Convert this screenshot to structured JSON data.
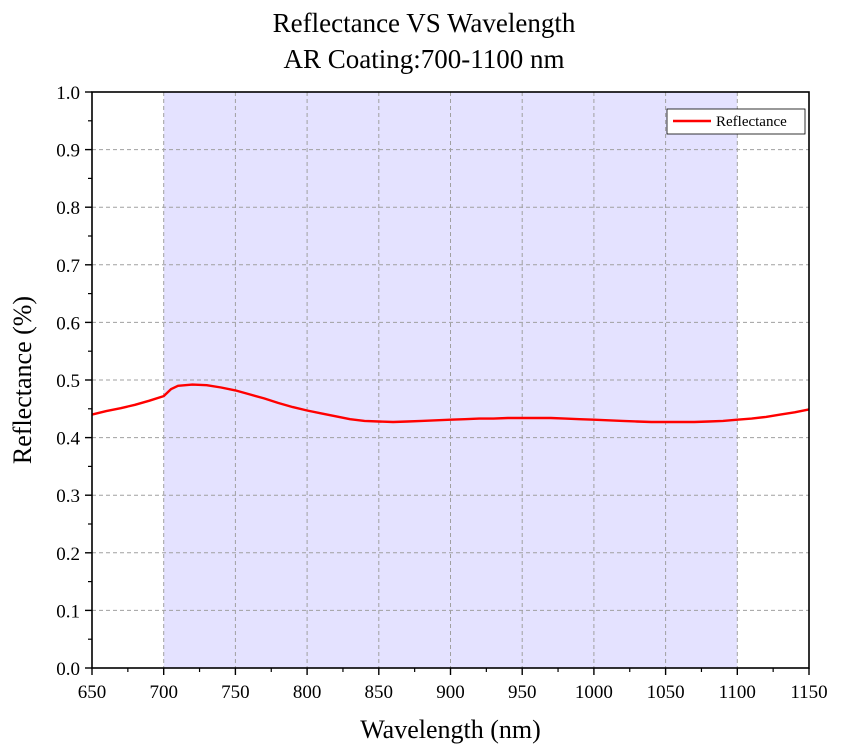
{
  "chart_data": {
    "type": "line",
    "title": "Reflectance VS Wavelength",
    "subtitle": "AR Coating:700-1100 nm",
    "xlabel": "Wavelength (nm)",
    "ylabel": "Reflectance (%)",
    "xlim": [
      650,
      1150
    ],
    "ylim": [
      0.0,
      1.0
    ],
    "xticks": [
      "650",
      "700",
      "750",
      "800",
      "850",
      "900",
      "950",
      "1000",
      "1050",
      "1100",
      "1150"
    ],
    "yticks": [
      "0.0",
      "0.1",
      "0.2",
      "0.3",
      "0.4",
      "0.5",
      "0.6",
      "0.7",
      "0.8",
      "0.9",
      "1.0"
    ],
    "grid": true,
    "legend_position": "top-right",
    "highlight_band": [
      700,
      1100
    ],
    "colors": {
      "series": "#ff0000",
      "band": "#e4e2ff",
      "grid": "#a0a0a0"
    },
    "series": [
      {
        "name": "Reflectance",
        "x": [
          650,
          660,
          670,
          680,
          690,
          700,
          705,
          710,
          720,
          730,
          740,
          750,
          760,
          770,
          780,
          790,
          800,
          810,
          820,
          830,
          840,
          850,
          860,
          870,
          880,
          890,
          900,
          910,
          920,
          930,
          940,
          950,
          960,
          970,
          980,
          990,
          1000,
          1010,
          1020,
          1030,
          1040,
          1050,
          1060,
          1070,
          1080,
          1090,
          1100,
          1110,
          1120,
          1130,
          1140,
          1150
        ],
        "y": [
          0.44,
          0.446,
          0.451,
          0.457,
          0.464,
          0.472,
          0.484,
          0.49,
          0.492,
          0.491,
          0.487,
          0.482,
          0.475,
          0.468,
          0.46,
          0.453,
          0.447,
          0.442,
          0.437,
          0.432,
          0.429,
          0.428,
          0.427,
          0.428,
          0.429,
          0.43,
          0.431,
          0.432,
          0.433,
          0.433,
          0.434,
          0.434,
          0.434,
          0.434,
          0.433,
          0.432,
          0.431,
          0.43,
          0.429,
          0.428,
          0.427,
          0.427,
          0.427,
          0.427,
          0.428,
          0.429,
          0.431,
          0.433,
          0.436,
          0.44,
          0.444,
          0.449
        ]
      }
    ]
  }
}
